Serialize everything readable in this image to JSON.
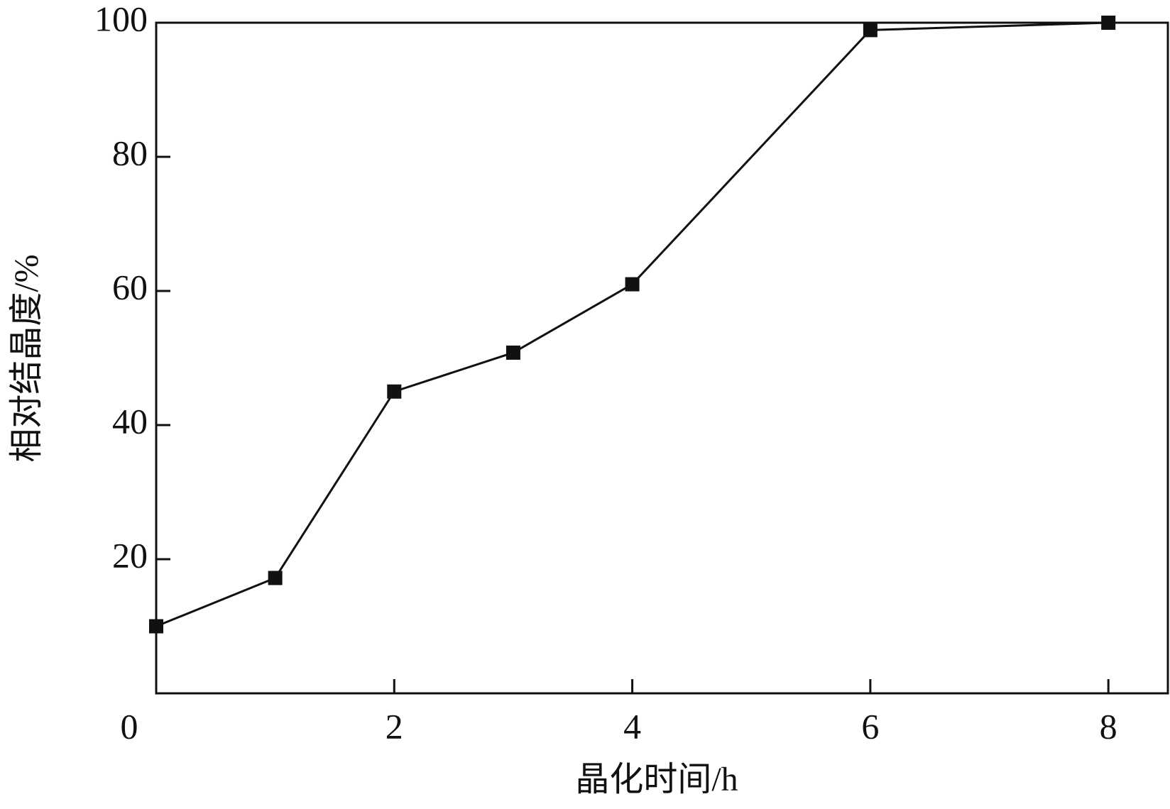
{
  "chart_data": {
    "type": "line",
    "x_label": "晶化时间/h",
    "y_label": "相对结晶度/%",
    "x": [
      0,
      1,
      2,
      3,
      4,
      6,
      8
    ],
    "series": [
      {
        "color": "#111111",
        "values": [
          10,
          17.2,
          45,
          50.8,
          61,
          98.9,
          100
        ]
      }
    ],
    "xlim": [
      0,
      8.5
    ],
    "ylim": [
      0,
      100
    ],
    "xticks": [
      0,
      2,
      4,
      6,
      8
    ],
    "yticks": [
      20,
      40,
      60,
      80,
      100
    ]
  }
}
